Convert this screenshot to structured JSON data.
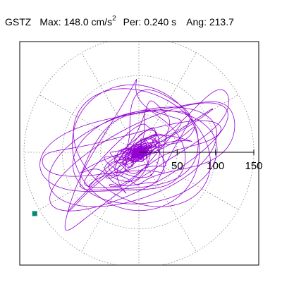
{
  "header": {
    "station": "GSTZ",
    "max_label": "Max:",
    "max_value": "148.0",
    "max_unit": "cm/s",
    "max_unit_exp": "2",
    "per_label": "Per:",
    "per_value": "0.240 s",
    "ang_label": "Ang:",
    "ang_value": "213.7"
  },
  "chart_data": {
    "type": "polar-orbit",
    "radial_ticks": [
      {
        "value": 50,
        "label": "50"
      },
      {
        "value": 100,
        "label": "100"
      },
      {
        "value": 150,
        "label": "150"
      }
    ],
    "radial_max": 150,
    "rings": [
      50,
      100,
      150
    ],
    "spoke_step_deg": 30,
    "grid": true,
    "particle_motion": {
      "orientation_deg": 20,
      "peak_amplitude": 148.0,
      "peak_angle_deg": 213.7,
      "endpoint": {
        "x": -136,
        "y": -80
      }
    },
    "colors": {
      "trace": "#9400d3",
      "grid": "#808080",
      "axis": "#000000",
      "marker": "#008b74",
      "frame": "#000000"
    }
  }
}
